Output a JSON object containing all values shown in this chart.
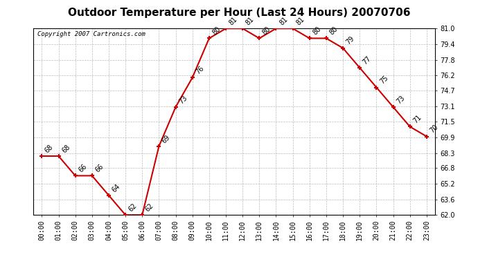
{
  "title": "Outdoor Temperature per Hour (Last 24 Hours) 20070706",
  "copyright": "Copyright 2007 Cartronics.com",
  "hours": [
    "00:00",
    "01:00",
    "02:00",
    "03:00",
    "04:00",
    "05:00",
    "06:00",
    "07:00",
    "08:00",
    "09:00",
    "10:00",
    "11:00",
    "12:00",
    "13:00",
    "14:00",
    "15:00",
    "16:00",
    "17:00",
    "18:00",
    "19:00",
    "20:00",
    "21:00",
    "22:00",
    "23:00"
  ],
  "temps": [
    68,
    68,
    66,
    66,
    64,
    62,
    62,
    69,
    73,
    76,
    80,
    81,
    81,
    80,
    81,
    81,
    80,
    80,
    79,
    77,
    75,
    73,
    71,
    70
  ],
  "ylim_min": 62.0,
  "ylim_max": 81.0,
  "yticks": [
    62.0,
    63.6,
    65.2,
    66.8,
    68.3,
    69.9,
    71.5,
    73.1,
    74.7,
    76.2,
    77.8,
    79.4,
    81.0
  ],
  "line_color": "#cc0000",
  "marker_color": "#cc0000",
  "bg_color": "#ffffff",
  "grid_color": "#aaaaaa",
  "title_fontsize": 11,
  "copyright_fontsize": 6.5,
  "label_fontsize": 7,
  "tick_fontsize": 7
}
